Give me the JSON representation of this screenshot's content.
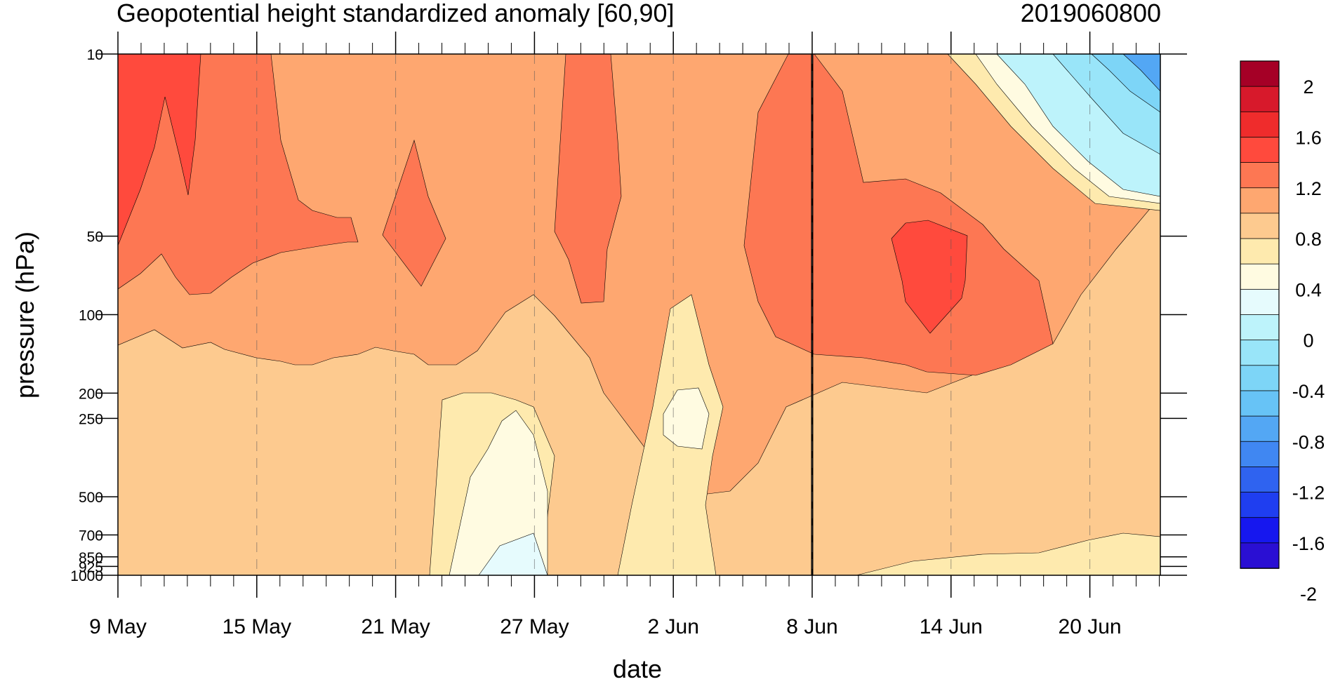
{
  "chart_data": {
    "type": "contour",
    "title": "Geopotential height standardized anomaly [60,90]",
    "date_stamp": "2019060800",
    "xlabel": "date",
    "ylabel": "pressure (hPa)",
    "x_ticks": [
      "9 May",
      "15 May",
      "21 May",
      "27 May",
      "2 Jun",
      "8 Jun",
      "14 Jun",
      "20 Jun"
    ],
    "y_ticks": [
      "10",
      "50",
      "100",
      "200",
      "250",
      "500",
      "700",
      "850",
      "925",
      "1000"
    ],
    "y_scale": "log",
    "ylim": [
      1000,
      10
    ],
    "reference_line": "8 Jun",
    "colorbar": {
      "labels": [
        "2",
        "1.6",
        "1.2",
        "0.8",
        "0.4",
        "0",
        "-0.4",
        "-0.8",
        "-1.2",
        "-1.6",
        "-2"
      ],
      "colors": [
        "#a50026",
        "#d7192b",
        "#ef2c2c",
        "#ff4a3d",
        "#fd7753",
        "#fea770",
        "#fdca8f",
        "#feeaae",
        "#fffbe1",
        "#e6fbfd",
        "#bdf3fb",
        "#99e5f9",
        "#7dd5f7",
        "#67c3f6",
        "#53a7f4",
        "#4087f2",
        "#2f63f0",
        "#1f3ef0",
        "#1617ef",
        "#2a0fd3"
      ]
    }
  }
}
